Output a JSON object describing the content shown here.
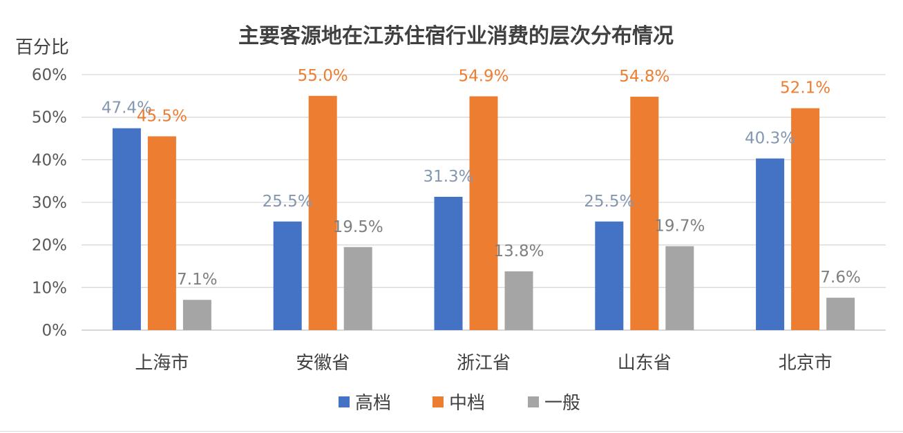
{
  "chart_data": {
    "type": "bar",
    "title": "主要客源地在江苏住宿行业消费的层次分布情况",
    "xlabel": "",
    "ylabel": "百分比",
    "ylim": [
      0,
      60
    ],
    "yticks": [
      "0%",
      "10%",
      "20%",
      "30%",
      "40%",
      "50%",
      "60%"
    ],
    "categories": [
      "上海市",
      "安徽省",
      "浙江省",
      "山东省",
      "北京市"
    ],
    "series": [
      {
        "name": "高档",
        "color": "#4472c4",
        "label_color": "#8497b0",
        "values": [
          47.4,
          25.5,
          31.3,
          25.5,
          40.3
        ],
        "labels": [
          "47.4%",
          "25.5%",
          "31.3%",
          "25.5%",
          "40.3%"
        ]
      },
      {
        "name": "中档",
        "color": "#ed7d31",
        "label_color": "#ed7d31",
        "values": [
          45.5,
          55.0,
          54.9,
          54.8,
          52.1
        ],
        "labels": [
          "45.5%",
          "55.0%",
          "54.9%",
          "54.8%",
          "52.1%"
        ]
      },
      {
        "name": "一般",
        "color": "#a5a5a5",
        "label_color": "#7f7f7f",
        "values": [
          7.1,
          19.5,
          13.8,
          19.7,
          7.6
        ],
        "labels": [
          "7.1%",
          "19.5%",
          "13.8%",
          "19.7%",
          "7.6%"
        ]
      }
    ],
    "grid": true,
    "legend_position": "bottom"
  }
}
